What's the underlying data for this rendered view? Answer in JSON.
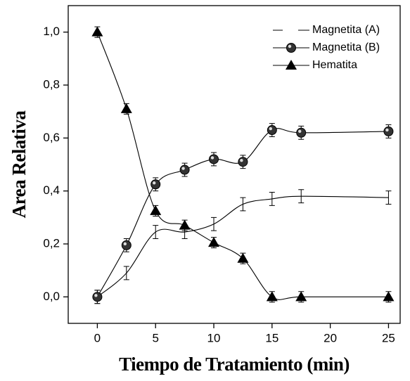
{
  "chart_data": {
    "type": "line",
    "x_label": "Tiempo de Tratamiento (min)",
    "y_label": "Area Relativa",
    "x": [
      0,
      2.5,
      5,
      7.5,
      10,
      12.5,
      15,
      17.5,
      25
    ],
    "series": [
      {
        "name": "Magnetita (A)",
        "color": "#000000",
        "marker": "none",
        "values": [
          0,
          0.09,
          0.245,
          0.245,
          0.275,
          0.35,
          0.37,
          0.38,
          0.375
        ],
        "errors": [
          0.025,
          0.025,
          0.025,
          0.025,
          0.025,
          0.025,
          0.025,
          0.025,
          0.025
        ]
      },
      {
        "name": "Magnetita (B)",
        "color": "#000000",
        "marker": "circle",
        "values": [
          0,
          0.195,
          0.425,
          0.48,
          0.52,
          0.51,
          0.63,
          0.62,
          0.625
        ],
        "errors": [
          0.025,
          0.025,
          0.025,
          0.025,
          0.025,
          0.025,
          0.025,
          0.025,
          0.025
        ]
      },
      {
        "name": "Hematita",
        "color": "#000000",
        "marker": "triangle",
        "values": [
          1.0,
          0.71,
          0.325,
          0.27,
          0.205,
          0.145,
          0,
          0,
          0
        ],
        "errors": [
          0.02,
          0.02,
          0.02,
          0.02,
          0.02,
          0.02,
          0.02,
          0.02,
          0.02
        ]
      }
    ],
    "xlim": [
      -2.5,
      26
    ],
    "ylim": [
      -0.1,
      1.1
    ],
    "xticks": [
      0,
      5,
      10,
      15,
      20,
      25
    ],
    "yticks": [
      {
        "value": 0,
        "label": "0,0"
      },
      {
        "value": 0.2,
        "label": "0,2"
      },
      {
        "value": 0.4,
        "label": "0,4"
      },
      {
        "value": 0.6,
        "label": "0,6"
      },
      {
        "value": 0.8,
        "label": "0,8"
      },
      {
        "value": 1.0,
        "label": "1,0"
      }
    ],
    "legend": "upper right",
    "grid": false
  }
}
